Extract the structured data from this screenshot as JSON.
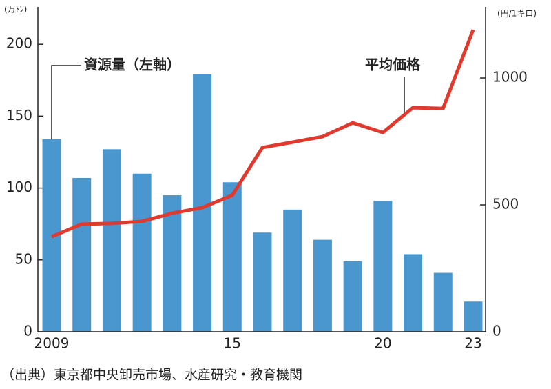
{
  "chart_data": {
    "type": "bar",
    "categories": [
      "2009",
      null,
      null,
      null,
      null,
      null,
      "15",
      null,
      null,
      null,
      null,
      "20",
      null,
      null,
      "23"
    ],
    "series": [
      {
        "name": "資源量（左軸）",
        "type": "bar",
        "color": "#4a97cf",
        "values": [
          134,
          107,
          127,
          110,
          95,
          179,
          104,
          69,
          85,
          64,
          49,
          91,
          54,
          41,
          21
        ]
      },
      {
        "name": "平均価格",
        "type": "line",
        "axis": "y2",
        "color": "#e03a2e",
        "values": [
          375,
          424,
          427,
          435,
          467,
          489,
          538,
          726,
          747,
          769,
          823,
          785,
          883,
          880,
          1190
        ]
      }
    ],
    "ylim": [
      0,
      226
    ],
    "yticks": [
      0,
      50,
      100,
      150,
      200
    ],
    "y2lim": [
      0,
      1280
    ],
    "y2ticks": [
      0,
      500,
      1000
    ],
    "y_unit": "(万ﾄﾝ)",
    "y2_unit": "(円/1キロ)",
    "source": "（出典）東京都中央卸売市場、水産研究・教育機関"
  }
}
